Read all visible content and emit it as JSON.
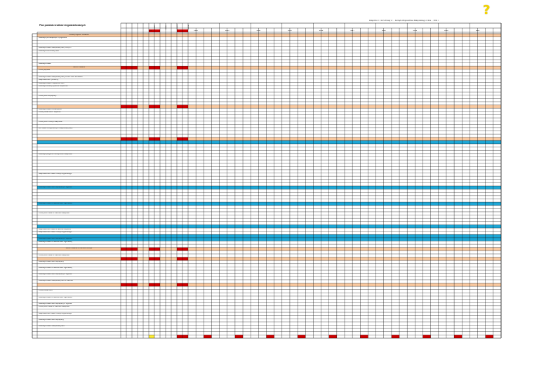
{
  "document": {
    "title": "Plan podziału środków niegwarantowanych",
    "caption": "Załącznik nr 1 do Uchwały nr ... Zarządu Województwa Małopolskiego z dnia ... 2011 r.",
    "help_icon": "question-mark-icon"
  },
  "table": {
    "header_label": "Nazwa projektu / działania",
    "vertical_headers": [
      "Kwota",
      "Wkład",
      "Razem",
      "Środki"
    ],
    "year_headers": [
      "2012",
      "2013",
      "2014",
      "2015",
      "2016",
      "2017",
      "2018",
      "2019",
      "2020",
      "2021"
    ],
    "first_row_label": "PO",
    "rows": [
      {
        "label": "",
        "band": "orange"
      },
      {
        "label": "Realizacja przedsięwzięć w pogotowiu",
        "band": ""
      },
      {
        "label": "",
        "band": ""
      },
      {
        "label": "",
        "band": ""
      },
      {
        "label": "Realizacja zadań Małopolskiej Bazy Danych",
        "band": ""
      },
      {
        "label": "Realizacja Rozbudowy sieci",
        "band": ""
      },
      {
        "label": "",
        "band": ""
      },
      {
        "label": "",
        "band": ""
      },
      {
        "label": "",
        "band": ""
      },
      {
        "label": "Realizacja zadań",
        "band": ""
      },
      {
        "label": "Razem zadania",
        "band": "orange-red"
      },
      {
        "label": "Rozwój kapitału",
        "band": ""
      },
      {
        "label": "",
        "band": ""
      },
      {
        "label": "Realizacja zadań Małopolskiej Bazy w sieci Sieci kontaktów",
        "band": ""
      },
      {
        "label": "Małopolska sieć i partnerzy",
        "band": ""
      },
      {
        "label": "Realizacja zadań i wspieranie sieci",
        "band": ""
      },
      {
        "label": "Realizacja Budowy systemu wspierania",
        "band": ""
      },
      {
        "label": "",
        "band": ""
      },
      {
        "label": "",
        "band": ""
      },
      {
        "label": "Rozwój sieci współpracy",
        "band": ""
      },
      {
        "label": "",
        "band": ""
      },
      {
        "label": "",
        "band": ""
      },
      {
        "label": "",
        "band": "orange-red"
      },
      {
        "label": "Realizacja zadań w Małopolsce",
        "band": ""
      },
      {
        "label": "Rozwój zadań sieci i wsparcia",
        "band": ""
      },
      {
        "label": "",
        "band": ""
      },
      {
        "label": "",
        "band": ""
      },
      {
        "label": "Rozwój sieci rozwoju Małopolski",
        "band": ""
      },
      {
        "label": "",
        "band": ""
      },
      {
        "label": "Sieć zadań zintegrowanych Małopolskiej Bazy",
        "band": ""
      },
      {
        "label": "",
        "band": ""
      },
      {
        "label": "",
        "band": ""
      },
      {
        "label": "",
        "band": "orange-red"
      },
      {
        "label": "",
        "band": "blue"
      },
      {
        "label": "",
        "band": ""
      },
      {
        "label": "",
        "band": ""
      },
      {
        "label": "",
        "band": ""
      },
      {
        "label": "Realizacja programu rozwoju sieci Małopolski",
        "band": ""
      },
      {
        "label": "",
        "band": ""
      },
      {
        "label": "",
        "band": ""
      },
      {
        "label": "",
        "band": ""
      },
      {
        "label": "",
        "band": ""
      },
      {
        "label": "",
        "band": ""
      },
      {
        "label": "Małopolska sieć zadań rozwoju regionalnego",
        "band": ""
      },
      {
        "label": "",
        "band": ""
      },
      {
        "label": "",
        "band": ""
      },
      {
        "label": "",
        "band": ""
      },
      {
        "label": "Realizacja zadań sieci współpracy w regionie",
        "band": "blue"
      },
      {
        "label": "",
        "band": ""
      },
      {
        "label": "",
        "band": ""
      },
      {
        "label": "",
        "band": ""
      },
      {
        "label": "",
        "band": ""
      },
      {
        "label": "Realizacja zadań w zakresie sieci regionalnej",
        "band": "blue"
      },
      {
        "label": "",
        "band": ""
      },
      {
        "label": "",
        "band": ""
      },
      {
        "label": "Rozwój sieci zadań w zakresie Małopolski",
        "band": ""
      },
      {
        "label": "",
        "band": ""
      },
      {
        "label": "",
        "band": ""
      },
      {
        "label": "",
        "band": ""
      },
      {
        "label": "",
        "band": "blue"
      },
      {
        "label": "Małopolska sieć zadań w zakresie wsparcia",
        "band": ""
      },
      {
        "label": "Małopolska sieć zadań rozwoju regionalnego",
        "band": ""
      },
      {
        "label": "",
        "band": "blue"
      },
      {
        "label": "Realizacja zadań sieci współpracy w regionie",
        "band": "blue"
      },
      {
        "label": "Realizacja zadań w zakresie sieci regionalnej",
        "band": ""
      },
      {
        "label": "",
        "band": ""
      },
      {
        "label": "Razem zadania w zakresie rozwoju",
        "band": "orange-red"
      },
      {
        "label": "",
        "band": ""
      },
      {
        "label": "Rozwój sieci zadań w zakresie Małopolski",
        "band": ""
      },
      {
        "label": "",
        "band": "orange-red"
      },
      {
        "label": "Realizacja zadań sieci współpracy",
        "band": ""
      },
      {
        "label": "",
        "band": ""
      },
      {
        "label": "Realizacja zadań w zakresie sieci regionalnej",
        "band": ""
      },
      {
        "label": "",
        "band": ""
      },
      {
        "label": "Realizacja zadań sieci współpracy w regionie",
        "band": ""
      },
      {
        "label": "",
        "band": ""
      },
      {
        "label": "Realizacja zadań Małopolskiej sieci w zakresie",
        "band": ""
      },
      {
        "label": "",
        "band": "orange-red"
      },
      {
        "label": "",
        "band": ""
      },
      {
        "label": "Rozwój zadań sieci",
        "band": ""
      },
      {
        "label": "",
        "band": ""
      },
      {
        "label": "Realizacja zadań w zakresie sieci regionalnej",
        "band": ""
      },
      {
        "label": "",
        "band": ""
      },
      {
        "label": "Realizacja zadań sieci współpracy w regionie",
        "band": ""
      },
      {
        "label": "Rozwój sieci zadań w zakresie Małopolski",
        "band": ""
      },
      {
        "label": "",
        "band": ""
      },
      {
        "label": "Małopolska sieć zadań rozwoju regionalnego",
        "band": ""
      },
      {
        "label": "",
        "band": ""
      },
      {
        "label": "Realizacja zadań sieci współpracy",
        "band": ""
      },
      {
        "label": "",
        "band": ""
      },
      {
        "label": "Realizacja zadań Małopolskiej sieci",
        "band": ""
      },
      {
        "label": "",
        "band": ""
      },
      {
        "label": "",
        "band": ""
      },
      {
        "label": "",
        "band": "final"
      }
    ],
    "colors": {
      "orange": "#f9c9a0",
      "red": "#d00000",
      "blue": "#1ea7d6",
      "yellow": "#ffee33",
      "line": "#000000"
    }
  }
}
